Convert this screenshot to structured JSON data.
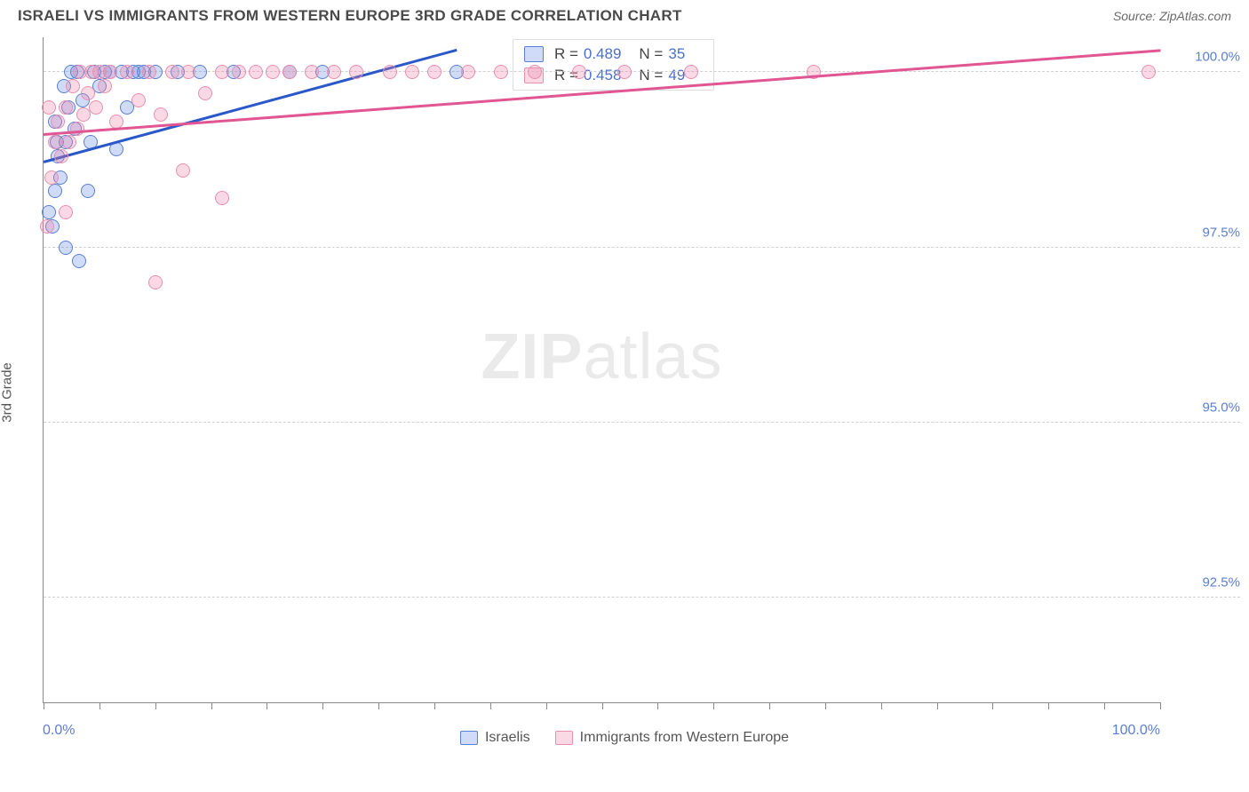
{
  "title": "ISRAELI VS IMMIGRANTS FROM WESTERN EUROPE 3RD GRADE CORRELATION CHART",
  "source": "Source: ZipAtlas.com",
  "ylabel": "3rd Grade",
  "watermark_bold": "ZIP",
  "watermark_light": "atlas",
  "chart": {
    "type": "scatter",
    "xlim": [
      0,
      100
    ],
    "ylim": [
      91,
      100.5
    ],
    "x_start_label": "0.0%",
    "x_end_label": "100.0%",
    "yticks": [
      {
        "v": 100.0,
        "label": "100.0%"
      },
      {
        "v": 97.5,
        "label": "97.5%"
      },
      {
        "v": 95.0,
        "label": "95.0%"
      },
      {
        "v": 92.5,
        "label": "92.5%"
      }
    ],
    "xticks": [
      0,
      5,
      10,
      15,
      20,
      25,
      30,
      35,
      40,
      45,
      50,
      55,
      60,
      65,
      70,
      75,
      80,
      85,
      90,
      95,
      100
    ],
    "grid_color": "#d0d0d0",
    "axis_color": "#888888",
    "background_color": "#ffffff",
    "marker_radius": 8,
    "series": [
      {
        "id": "israelis",
        "label": "Israelis",
        "fill": "rgba(100,140,230,0.30)",
        "stroke": "#5b7fd1",
        "trend_color": "#2a58c8",
        "R": "0.489",
        "N": "35",
        "trend": {
          "x1": 0,
          "y1": 98.7,
          "x2": 37,
          "y2": 100.3
        },
        "points": [
          [
            0.5,
            98.0
          ],
          [
            0.8,
            97.8
          ],
          [
            1.0,
            98.3
          ],
          [
            1.2,
            99.0
          ],
          [
            1.5,
            98.5
          ],
          [
            1.8,
            99.8
          ],
          [
            2.0,
            99.0
          ],
          [
            2.2,
            99.5
          ],
          [
            2.5,
            100.0
          ],
          [
            2.8,
            99.2
          ],
          [
            3.0,
            100.0
          ],
          [
            3.5,
            99.6
          ],
          [
            4.0,
            98.3
          ],
          [
            4.2,
            99.0
          ],
          [
            4.5,
            100.0
          ],
          [
            5.0,
            99.8
          ],
          [
            5.5,
            100.0
          ],
          [
            6.0,
            100.0
          ],
          [
            6.5,
            98.9
          ],
          [
            7.0,
            100.0
          ],
          [
            7.5,
            99.5
          ],
          [
            8.0,
            100.0
          ],
          [
            8.5,
            100.0
          ],
          [
            9.0,
            100.0
          ],
          [
            10.0,
            100.0
          ],
          [
            12.0,
            100.0
          ],
          [
            14.0,
            100.0
          ],
          [
            17.0,
            100.0
          ],
          [
            22.0,
            100.0
          ],
          [
            25.0,
            100.0
          ],
          [
            37.0,
            100.0
          ],
          [
            3.2,
            97.3
          ],
          [
            2.0,
            97.5
          ],
          [
            1.0,
            99.3
          ],
          [
            1.3,
            98.8
          ]
        ]
      },
      {
        "id": "immigrants",
        "label": "Immigrants from Western Europe",
        "fill": "rgba(240,130,170,0.30)",
        "stroke": "#e88fb0",
        "trend_color": "#e05592",
        "R": "0.458",
        "N": "49",
        "trend": {
          "x1": 0,
          "y1": 99.1,
          "x2": 100,
          "y2": 100.3
        },
        "points": [
          [
            0.3,
            97.8
          ],
          [
            0.7,
            98.5
          ],
          [
            1.0,
            99.0
          ],
          [
            1.3,
            99.3
          ],
          [
            1.6,
            98.8
          ],
          [
            2.0,
            99.5
          ],
          [
            2.3,
            99.0
          ],
          [
            2.6,
            99.8
          ],
          [
            3.0,
            99.2
          ],
          [
            3.3,
            100.0
          ],
          [
            3.6,
            99.4
          ],
          [
            4.0,
            99.7
          ],
          [
            4.3,
            100.0
          ],
          [
            4.7,
            99.5
          ],
          [
            5.0,
            100.0
          ],
          [
            5.5,
            99.8
          ],
          [
            6.0,
            100.0
          ],
          [
            6.5,
            99.3
          ],
          [
            7.5,
            100.0
          ],
          [
            8.5,
            99.6
          ],
          [
            9.5,
            100.0
          ],
          [
            10.5,
            99.4
          ],
          [
            11.5,
            100.0
          ],
          [
            12.5,
            98.6
          ],
          [
            13.0,
            100.0
          ],
          [
            14.5,
            99.7
          ],
          [
            16.0,
            100.0
          ],
          [
            17.5,
            100.0
          ],
          [
            19.0,
            100.0
          ],
          [
            20.5,
            100.0
          ],
          [
            22.0,
            100.0
          ],
          [
            24.0,
            100.0
          ],
          [
            26.0,
            100.0
          ],
          [
            28.0,
            100.0
          ],
          [
            31.0,
            100.0
          ],
          [
            33.0,
            100.0
          ],
          [
            35.0,
            100.0
          ],
          [
            38.0,
            100.0
          ],
          [
            41.0,
            100.0
          ],
          [
            44.0,
            100.0
          ],
          [
            48.0,
            100.0
          ],
          [
            52.0,
            100.0
          ],
          [
            58.0,
            100.0
          ],
          [
            69.0,
            100.0
          ],
          [
            99.0,
            100.0
          ],
          [
            10.0,
            97.0
          ],
          [
            16.0,
            98.2
          ],
          [
            2.0,
            98.0
          ],
          [
            0.5,
            99.5
          ]
        ]
      }
    ]
  },
  "stats_labels": {
    "R": "R =",
    "N": "N ="
  }
}
